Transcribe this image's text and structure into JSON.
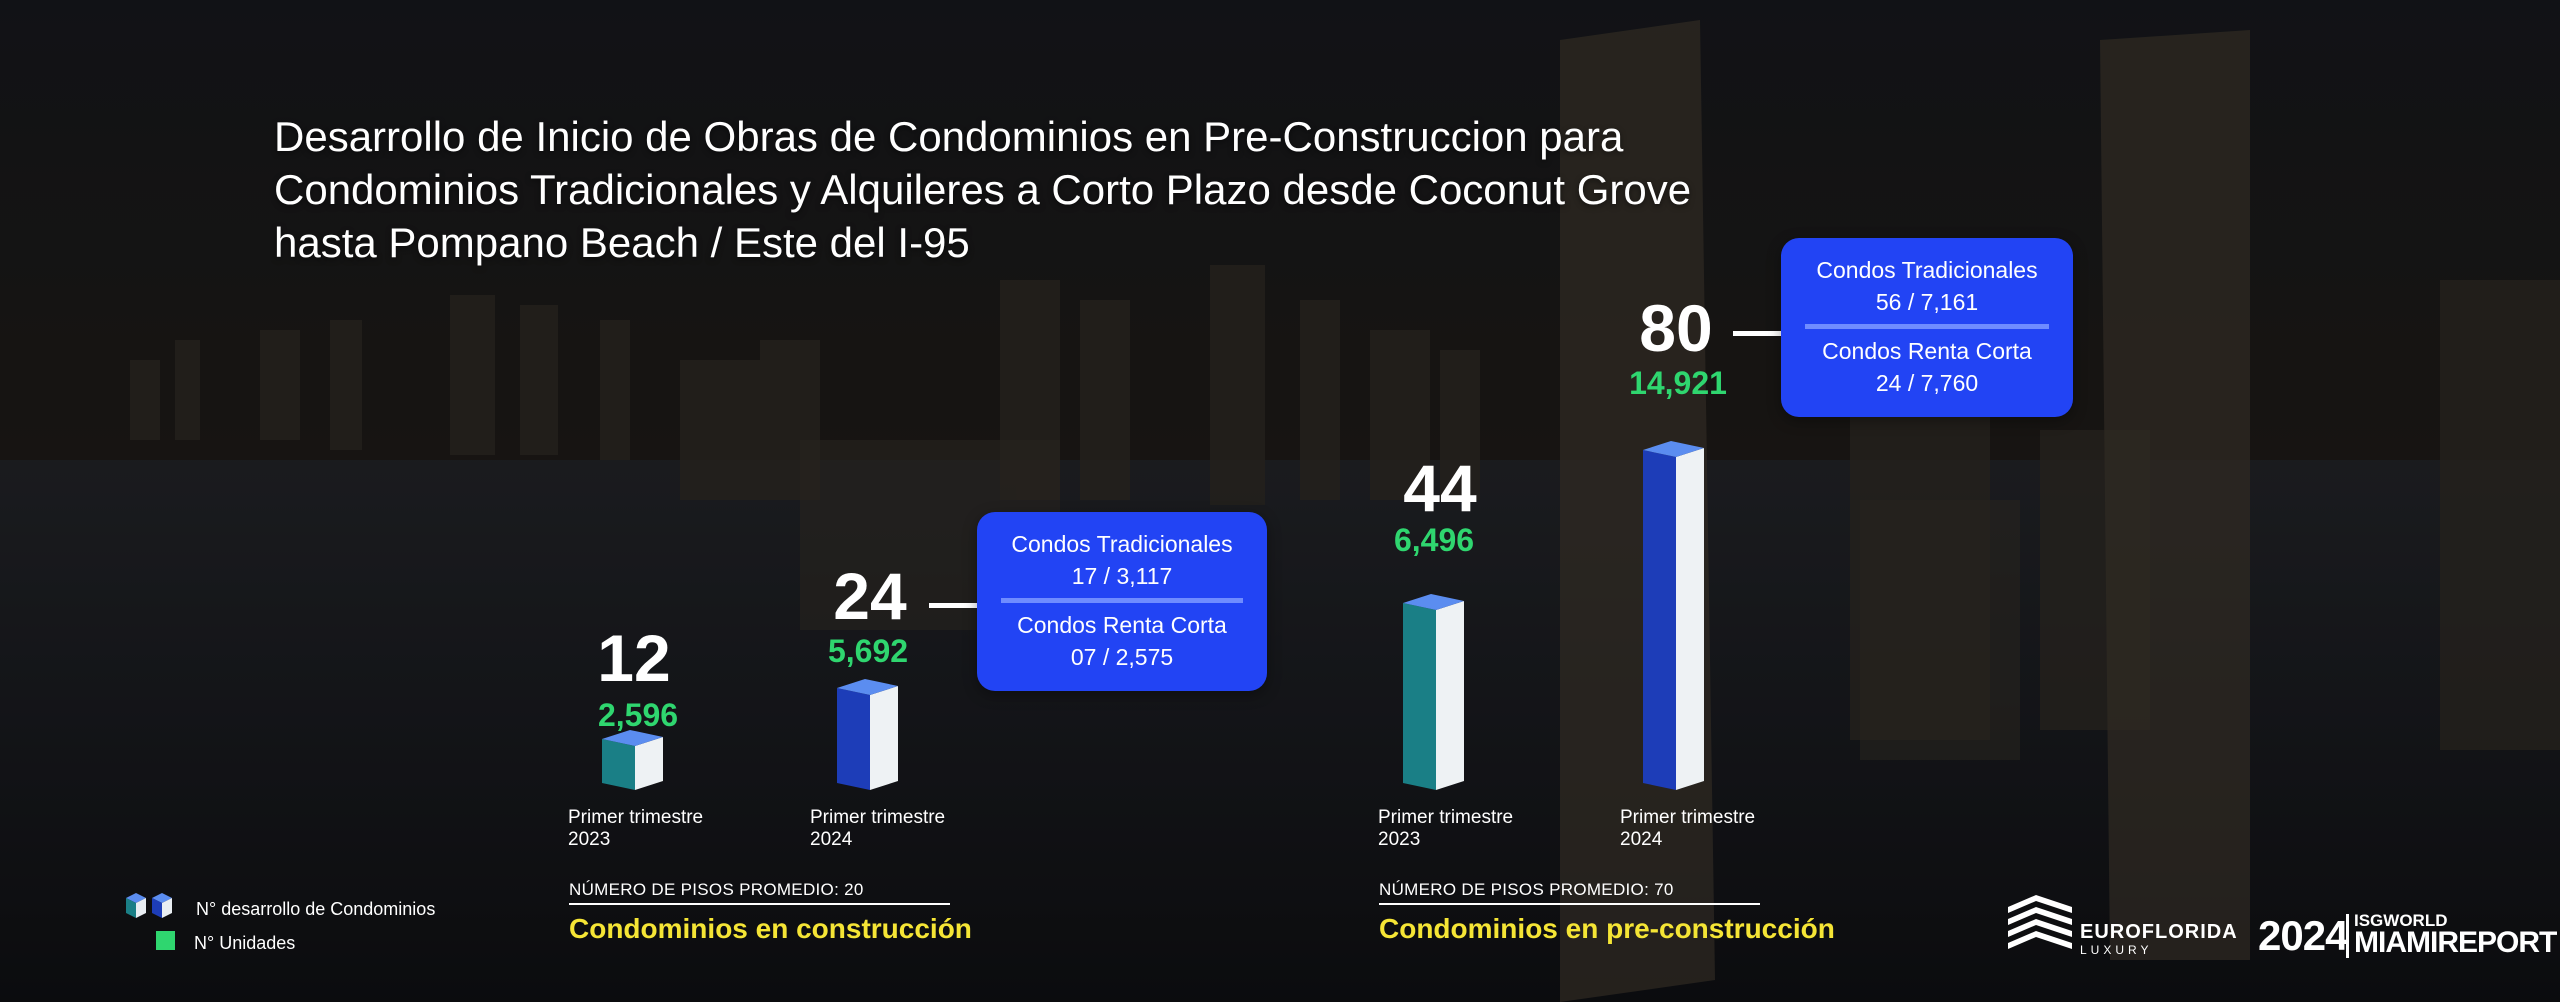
{
  "title": "Desarrollo de Inicio de Obras de Condominios en Pre-Construccion para Condominios Tradicionales y Alquileres a Corto Plazo desde Coconut Grove hasta Pompano Beach / Este del I-95",
  "colors": {
    "highlight_green": "#2fd66f",
    "section_yellow": "#f5e535",
    "popup_blue": "#2244f4",
    "bar_blue": "#1d3db8",
    "bar_teal": "#1a7f86",
    "bar_top": "#5b8df0"
  },
  "chart_data": {
    "type": "bar",
    "groups": [
      {
        "section": "Condominios en construcción",
        "floors_label": "NÚMERO DE PISOS PROMEDIO: 20",
        "bars": [
          {
            "period_line1": "Primer trimestre",
            "period_line2": "2023",
            "developments": 12,
            "units": "2,596",
            "color": "teal"
          },
          {
            "period_line1": "Primer trimestre",
            "period_line2": "2024",
            "developments": 24,
            "units": "5,692",
            "color": "blue",
            "breakdown": {
              "traditional_label": "Condos Tradicionales",
              "traditional_value": "17 / 3,117",
              "short_label": "Condos Renta Corta",
              "short_value": "07 / 2,575"
            }
          }
        ]
      },
      {
        "section": "Condominios en pre-construcción",
        "floors_label": "NÚMERO DE PISOS PROMEDIO: 70",
        "bars": [
          {
            "period_line1": "Primer trimestre",
            "period_line2": "2023",
            "developments": 44,
            "units": "6,496",
            "color": "teal"
          },
          {
            "period_line1": "Primer trimestre",
            "period_line2": "2024",
            "developments": 80,
            "units": "14,921",
            "color": "blue",
            "breakdown": {
              "traditional_label": "Condos Tradicionales",
              "traditional_value": "56 / 7,161",
              "short_label": "Condos Renta Corta",
              "short_value": "24 / 7,760"
            }
          }
        ]
      }
    ]
  },
  "legend": {
    "developments_label": "N° desarrollo de Condominios",
    "units_label": "N° Unidades",
    "developments_icon": "cube-icon",
    "units_icon": "square-icon"
  },
  "logos": {
    "eurofloridabrand": "EUROFLORIDA",
    "eurofloridabrand_sub": "LUXURY",
    "report_year": "2024",
    "report_small": "ISGWORLD",
    "report_name": "MIAMIREPORT"
  }
}
